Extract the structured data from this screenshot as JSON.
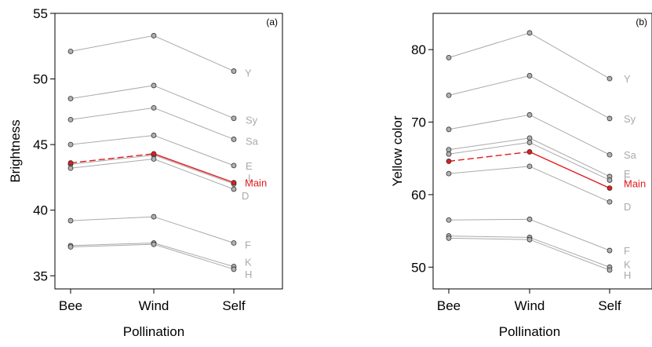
{
  "chart_data": [
    {
      "type": "line",
      "panel_label": "(a)",
      "xlabel": "Pollination",
      "ylabel": "Brightness",
      "categories": [
        "Bee",
        "Wind",
        "Self"
      ],
      "ylim": [
        34,
        55
      ],
      "yticks": [
        35,
        40,
        45,
        50,
        55
      ],
      "grid": false,
      "series": [
        {
          "name": "Y",
          "values": [
            52.1,
            53.3,
            50.6
          ],
          "color": "#aaaaaa"
        },
        {
          "name": "Sy",
          "values": [
            48.5,
            49.5,
            47.0
          ],
          "color": "#aaaaaa"
        },
        {
          "name": "Sa",
          "values": [
            46.9,
            47.8,
            45.4
          ],
          "color": "#aaaaaa"
        },
        {
          "name": "E",
          "values": [
            45.0,
            45.7,
            43.4
          ],
          "color": "#aaaaaa"
        },
        {
          "name": "L",
          "values": [
            43.5,
            44.2,
            42.0
          ],
          "color": "#aaaaaa"
        },
        {
          "name": "D",
          "values": [
            43.2,
            43.9,
            41.6
          ],
          "color": "#aaaaaa"
        },
        {
          "name": "F",
          "values": [
            39.2,
            39.5,
            37.5
          ],
          "color": "#aaaaaa"
        },
        {
          "name": "K",
          "values": [
            37.3,
            37.5,
            35.7
          ],
          "color": "#aaaaaa"
        },
        {
          "name": "H",
          "values": [
            37.2,
            37.4,
            35.5
          ],
          "color": "#aaaaaa"
        },
        {
          "name": "Main",
          "values": [
            43.6,
            44.3,
            42.1
          ],
          "color": "#e31a1c",
          "dashed_segment": [
            0,
            1
          ]
        }
      ]
    },
    {
      "type": "line",
      "panel_label": "(b)",
      "xlabel": "Pollination",
      "ylabel": "Yellow color",
      "categories": [
        "Bee",
        "Wind",
        "Self"
      ],
      "ylim": [
        47,
        85
      ],
      "yticks": [
        50,
        60,
        70,
        80
      ],
      "grid": false,
      "series": [
        {
          "name": "Y",
          "values": [
            78.9,
            82.3,
            76.0
          ],
          "color": "#aaaaaa"
        },
        {
          "name": "Sy",
          "values": [
            73.7,
            76.4,
            70.5
          ],
          "color": "#aaaaaa"
        },
        {
          "name": "Sa",
          "values": [
            69.0,
            71.0,
            65.5
          ],
          "color": "#aaaaaa"
        },
        {
          "name": "E",
          "values": [
            66.2,
            67.8,
            62.5
          ],
          "color": "#aaaaaa"
        },
        {
          "name": "L",
          "values": [
            65.6,
            67.2,
            62.0
          ],
          "color": "#aaaaaa"
        },
        {
          "name": "D",
          "values": [
            62.9,
            63.9,
            59.0
          ],
          "color": "#aaaaaa"
        },
        {
          "name": "F",
          "values": [
            56.5,
            56.6,
            52.3
          ],
          "color": "#aaaaaa"
        },
        {
          "name": "K",
          "values": [
            54.3,
            54.1,
            50.0
          ],
          "color": "#aaaaaa"
        },
        {
          "name": "H",
          "values": [
            54.0,
            53.8,
            49.6
          ],
          "color": "#aaaaaa"
        },
        {
          "name": "Main",
          "values": [
            64.6,
            65.9,
            60.9
          ],
          "color": "#e31a1c",
          "dashed_segment": [
            0,
            1
          ]
        }
      ]
    }
  ]
}
